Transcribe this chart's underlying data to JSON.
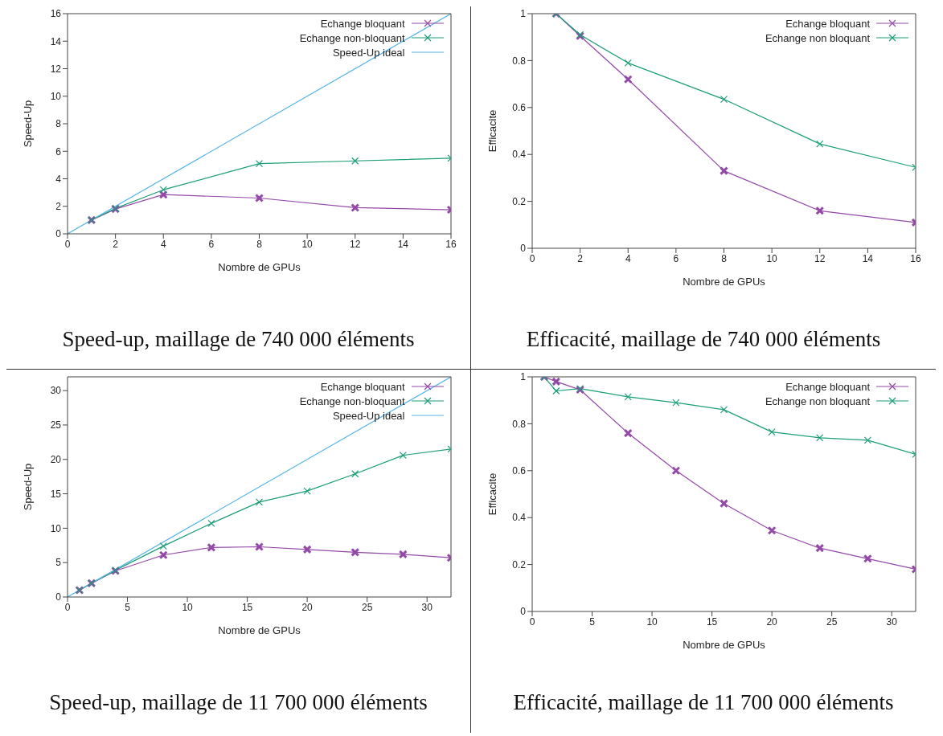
{
  "chart_data": [
    {
      "type": "line",
      "xlabel": "Nombre de GPUs",
      "ylabel": "Speed-Up",
      "annotations": [
        "Speed-up, maillage de 740 000 éléments"
      ],
      "xlim": [
        0,
        16
      ],
      "xticks": [
        0,
        2,
        4,
        6,
        8,
        10,
        12,
        14,
        16
      ],
      "ylim": [
        0,
        16
      ],
      "yticks": [
        0,
        2,
        4,
        6,
        8,
        10,
        12,
        14,
        16
      ],
      "grid": false,
      "legend": "top right",
      "series": [
        {
          "name": "Echange bloquant",
          "color": "#9449a8",
          "marker": "cross",
          "x": [
            1,
            2,
            4,
            8,
            12,
            16
          ],
          "values": [
            1.0,
            1.8,
            2.85,
            2.6,
            1.9,
            1.75
          ]
        },
        {
          "name": "Echange non-bloquant",
          "color": "#1a9e77",
          "marker": "cross",
          "x": [
            1,
            2,
            4,
            8,
            12,
            16
          ],
          "values": [
            1.0,
            1.85,
            3.2,
            5.1,
            5.3,
            5.5
          ]
        },
        {
          "name": "Speed-Up ideal",
          "color": "#56b4e9",
          "marker": "none",
          "x": [
            0,
            16
          ],
          "values": [
            0,
            16
          ]
        }
      ]
    },
    {
      "type": "line",
      "xlabel": "Nombre de GPUs",
      "ylabel": "Efficacite",
      "annotations": [
        "Efficacité, maillage de 740 000 éléments"
      ],
      "xlim": [
        0,
        16
      ],
      "xticks": [
        0,
        2,
        4,
        6,
        8,
        10,
        12,
        14,
        16
      ],
      "ylim": [
        0,
        1
      ],
      "yticks": [
        0,
        0.2,
        0.4,
        0.6,
        0.8,
        1
      ],
      "grid": false,
      "legend": "top right",
      "series": [
        {
          "name": "Echange bloquant",
          "color": "#9449a8",
          "marker": "cross",
          "x": [
            1,
            2,
            4,
            8,
            12,
            16
          ],
          "values": [
            1,
            0.905,
            0.72,
            0.33,
            0.16,
            0.11
          ]
        },
        {
          "name": "Echange non bloquant",
          "color": "#1a9e77",
          "marker": "cross",
          "x": [
            1,
            2,
            4,
            8,
            12,
            16
          ],
          "values": [
            1,
            0.91,
            0.79,
            0.635,
            0.445,
            0.345
          ]
        }
      ]
    },
    {
      "type": "line",
      "xlabel": "Nombre de GPUs",
      "ylabel": "Speed-Up",
      "annotations": [
        "Speed-up, maillage de 11 700 000 éléments"
      ],
      "xlim": [
        0,
        32
      ],
      "xticks": [
        0,
        5,
        10,
        15,
        20,
        25,
        30
      ],
      "ylim": [
        0,
        32
      ],
      "yticks": [
        0,
        5,
        10,
        15,
        20,
        25,
        30
      ],
      "grid": false,
      "legend": "top right",
      "series": [
        {
          "name": "Echange bloquant",
          "color": "#9449a8",
          "marker": "cross",
          "x": [
            1,
            2,
            4,
            8,
            12,
            16,
            20,
            24,
            28,
            32
          ],
          "values": [
            1,
            2,
            3.8,
            6.1,
            7.2,
            7.3,
            6.9,
            6.5,
            6.2,
            5.7
          ]
        },
        {
          "name": "Echange non-bloquant",
          "color": "#1a9e77",
          "marker": "cross",
          "x": [
            1,
            2,
            4,
            8,
            12,
            16,
            20,
            24,
            28,
            32
          ],
          "values": [
            1,
            2,
            3.9,
            7.4,
            10.7,
            13.8,
            15.4,
            17.9,
            20.6,
            21.5
          ]
        },
        {
          "name": "Speed-Up ideal",
          "color": "#56b4e9",
          "marker": "none",
          "x": [
            0,
            32
          ],
          "values": [
            0,
            32
          ]
        }
      ]
    },
    {
      "type": "line",
      "xlabel": "Nombre de GPUs",
      "ylabel": "Efficacite",
      "annotations": [
        "Efficacité, maillage de 11 700 000 éléments"
      ],
      "xlim": [
        0,
        32
      ],
      "xticks": [
        0,
        5,
        10,
        15,
        20,
        25,
        30
      ],
      "ylim": [
        0,
        1
      ],
      "yticks": [
        0,
        0.2,
        0.4,
        0.6,
        0.8,
        1
      ],
      "grid": false,
      "legend": "top right",
      "series": [
        {
          "name": "Echange bloquant",
          "color": "#9449a8",
          "marker": "cross",
          "x": [
            1,
            2,
            4,
            8,
            12,
            16,
            20,
            24,
            28,
            32
          ],
          "values": [
            1,
            0.98,
            0.945,
            0.76,
            0.6,
            0.46,
            0.345,
            0.27,
            0.225,
            0.18
          ]
        },
        {
          "name": "Echange non bloquant",
          "color": "#1a9e77",
          "marker": "cross",
          "x": [
            1,
            2,
            4,
            8,
            12,
            16,
            20,
            24,
            28,
            32
          ],
          "values": [
            1,
            0.94,
            0.95,
            0.915,
            0.89,
            0.86,
            0.765,
            0.74,
            0.73,
            0.67
          ]
        }
      ]
    }
  ]
}
